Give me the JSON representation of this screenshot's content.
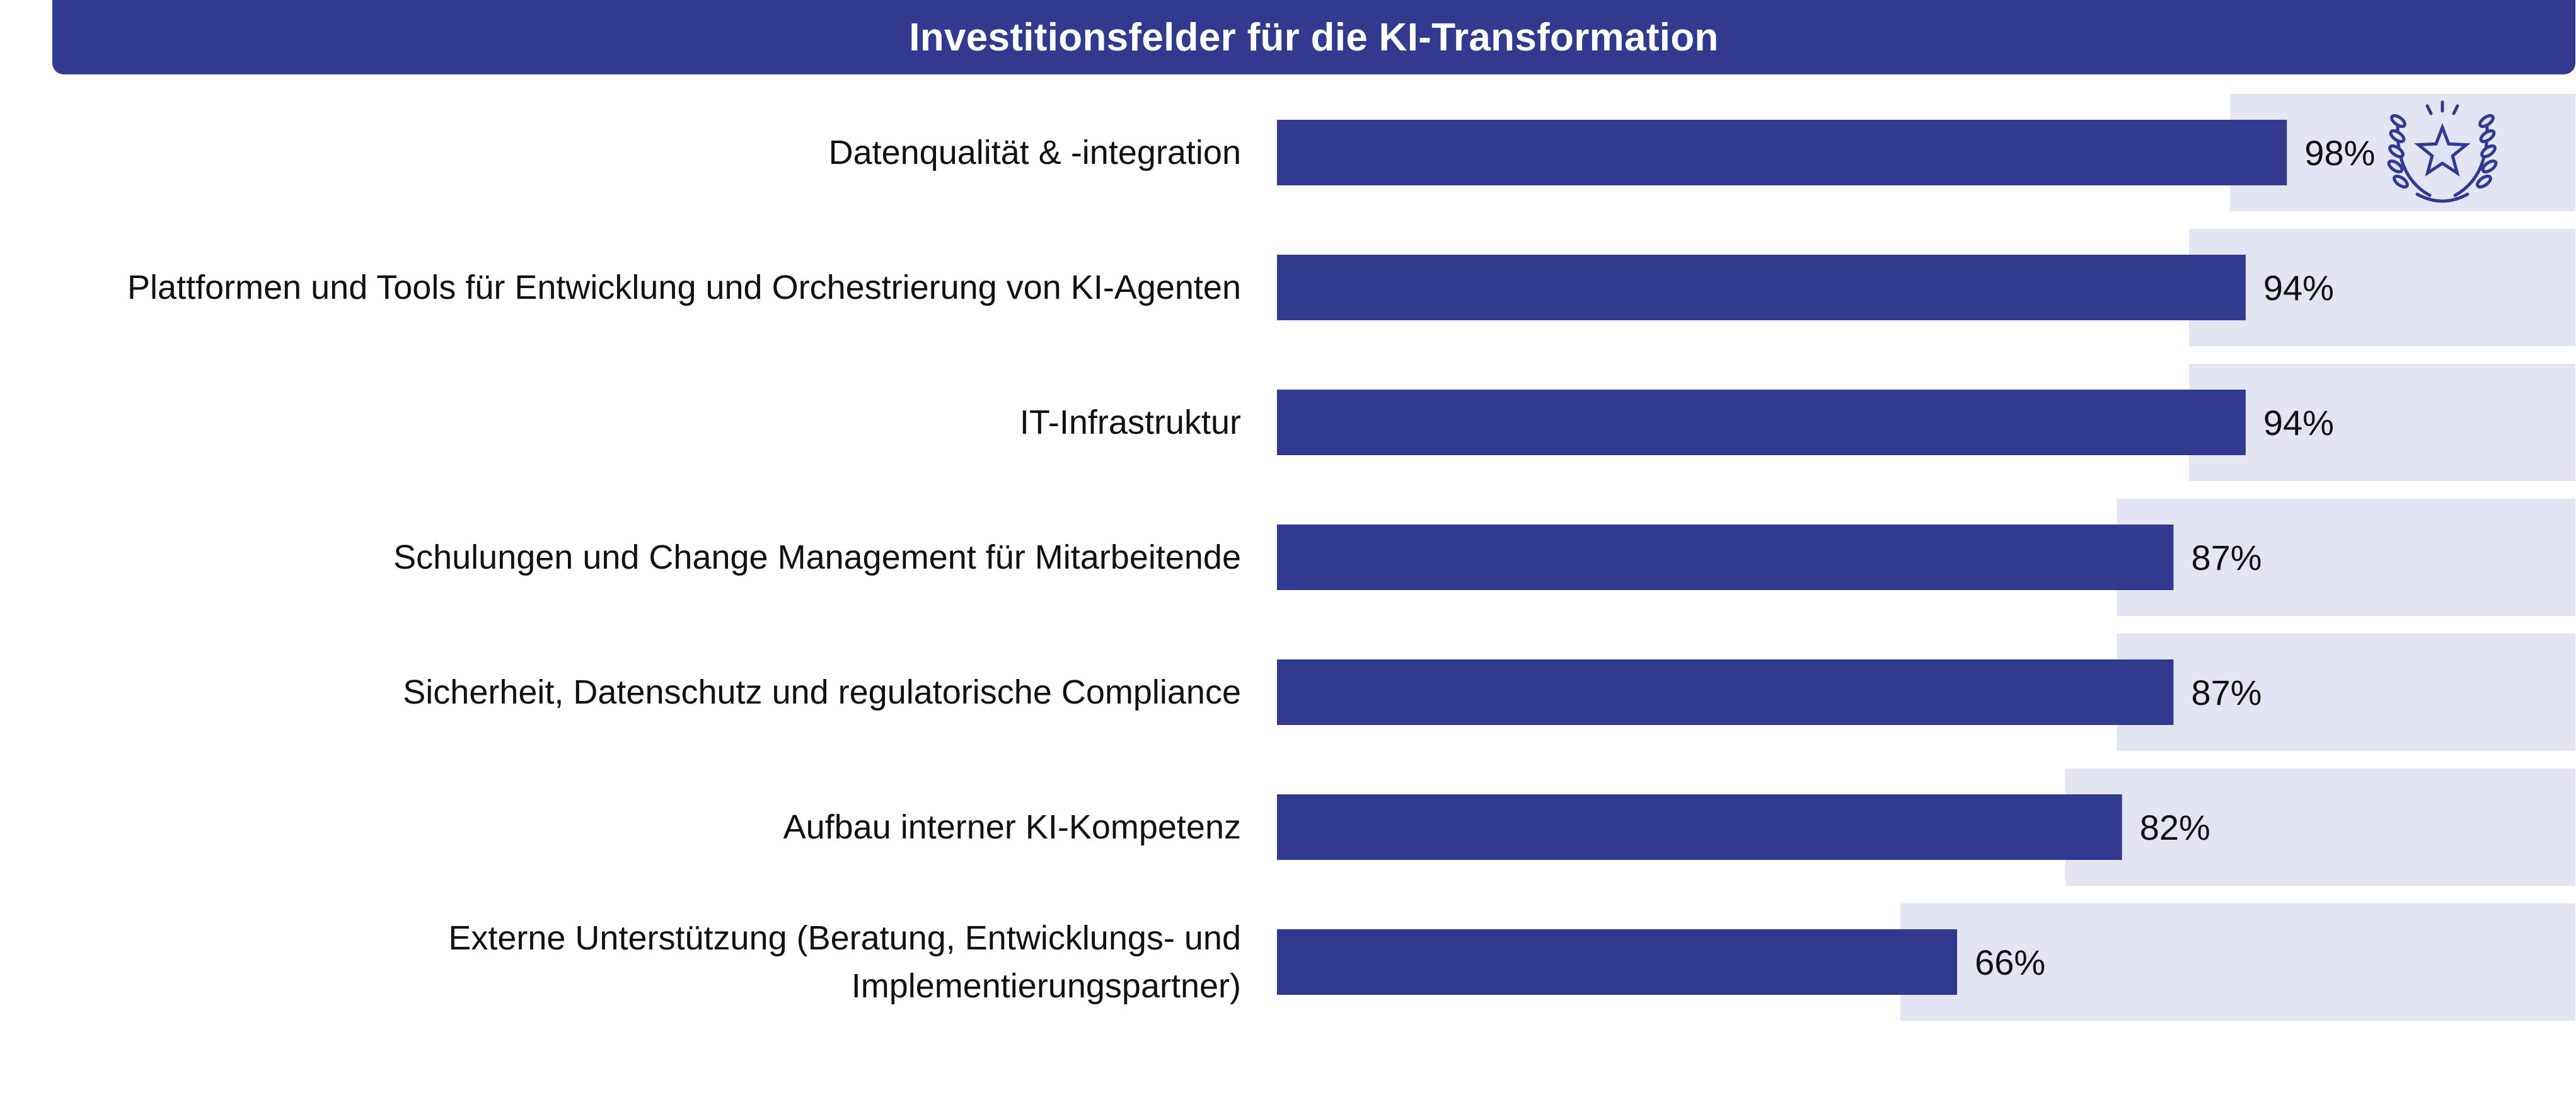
{
  "header": {
    "title": "Investitionsfelder für die KI-Transformation"
  },
  "chart_data": {
    "type": "bar",
    "orientation": "horizontal",
    "title": "Investitionsfelder für die KI-Transformation",
    "categories": [
      "Datenqualität & -integration",
      "Plattformen und Tools für Entwicklung und Orchestrierung von KI-Agenten",
      "IT-Infrastruktur",
      "Schulungen und Change Management für Mitarbeitende",
      "Sicherheit, Datenschutz und regulatorische Compliance",
      "Aufbau interner KI-Kompetenz",
      "Externe Unterstützung (Beratung, Entwicklungs- und Implementierungspartner)"
    ],
    "values": [
      98,
      94,
      94,
      87,
      87,
      82,
      66
    ],
    "value_labels": [
      "98%",
      "94%",
      "94%",
      "87%",
      "87%",
      "82%",
      "66%"
    ],
    "value_unit": "%",
    "xlim": [
      0,
      100
    ],
    "grid": false,
    "legend": "none",
    "highlight": {
      "index": 0,
      "icon": "laurel-star-icon"
    },
    "colors": {
      "bar": "#323a8f",
      "band": "#e4e5f2",
      "text": "#111111",
      "icon_fill": "#dde3f5"
    }
  }
}
